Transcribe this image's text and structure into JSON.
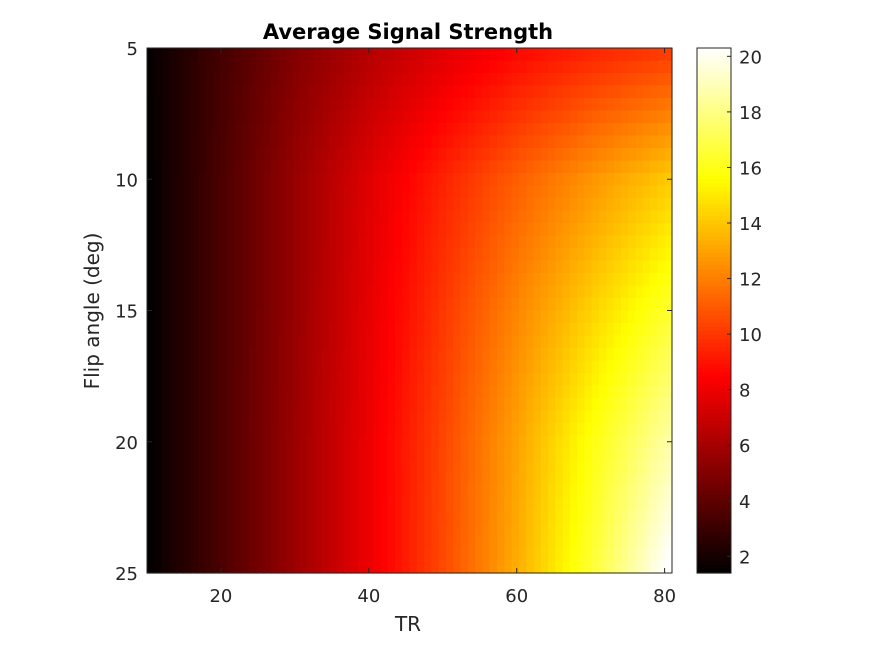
{
  "chart_data": {
    "type": "heatmap",
    "title": "Average Signal Strength",
    "xlabel": "TR",
    "ylabel": "Flip angle (deg)",
    "x_range": [
      10,
      81
    ],
    "y_range": [
      5,
      25
    ],
    "y_reversed": true,
    "x_ticks": [
      20,
      40,
      60,
      80
    ],
    "y_ticks": [
      5,
      10,
      15,
      20,
      25
    ],
    "colormap": "hot",
    "colorbar": {
      "range": [
        1.4,
        20.3
      ],
      "ticks": [
        2,
        4,
        6,
        8,
        10,
        12,
        14,
        16,
        18,
        20
      ]
    },
    "sampled_values": {
      "x": [
        10,
        20,
        30,
        40,
        50,
        60,
        70,
        80
      ],
      "y": [
        5,
        10,
        15,
        20,
        25
      ],
      "z": [
        [
          1.5,
          3.3,
          5.0,
          6.4,
          7.6,
          8.6,
          9.4,
          10.0
        ],
        [
          1.4,
          3.5,
          5.6,
          7.6,
          9.4,
          11.1,
          12.6,
          14.0
        ],
        [
          1.4,
          3.5,
          5.6,
          7.8,
          10.0,
          12.2,
          14.3,
          16.3
        ],
        [
          1.4,
          3.5,
          5.7,
          8.0,
          10.4,
          13.0,
          15.8,
          18.5
        ],
        [
          1.4,
          3.5,
          5.7,
          8.0,
          10.5,
          13.3,
          16.5,
          20.3
        ]
      ]
    }
  }
}
